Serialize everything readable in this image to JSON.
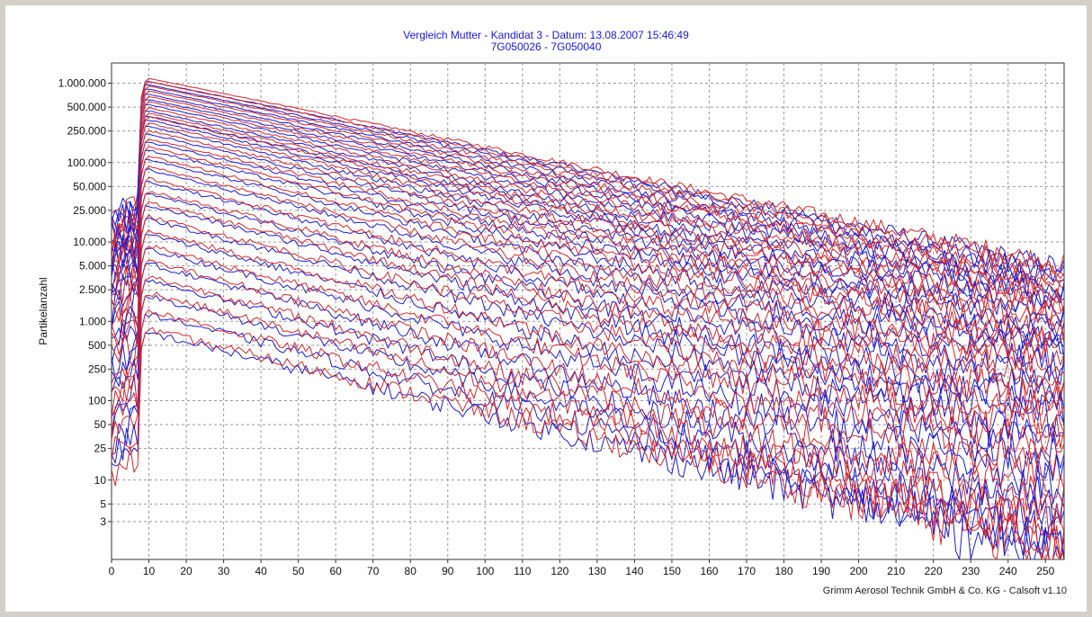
{
  "chart_data": {
    "type": "line",
    "title": "Vergleich Mutter - Kandidat 3 - Datum: 13.08.2007 15:46:49",
    "subtitle": "7G050026 - 7G050040",
    "xlabel": "",
    "ylabel": "Partikelanzahl",
    "footer": "Grimm Aerosol Technik GmbH & Co. KG - Calsoft v1.10",
    "y_scale": "log",
    "xlim": [
      0,
      255
    ],
    "ylim": [
      1,
      1800000
    ],
    "grid": true,
    "x_ticks": [
      0,
      10,
      20,
      30,
      40,
      50,
      60,
      70,
      80,
      90,
      100,
      110,
      120,
      130,
      140,
      150,
      160,
      170,
      180,
      190,
      200,
      210,
      220,
      230,
      240,
      250
    ],
    "y_ticks": [
      {
        "value": 1000000,
        "label": "1.000.000"
      },
      {
        "value": 500000,
        "label": "500.000"
      },
      {
        "value": 250000,
        "label": "250.000"
      },
      {
        "value": 100000,
        "label": "100.000"
      },
      {
        "value": 50000,
        "label": "50.000"
      },
      {
        "value": 25000,
        "label": "25.000"
      },
      {
        "value": 10000,
        "label": "10.000"
      },
      {
        "value": 5000,
        "label": "5.000"
      },
      {
        "value": 2500,
        "label": "2.500"
      },
      {
        "value": 1000,
        "label": "1.000"
      },
      {
        "value": 500,
        "label": "500"
      },
      {
        "value": 250,
        "label": "250"
      },
      {
        "value": 100,
        "label": "100"
      },
      {
        "value": 50,
        "label": "50"
      },
      {
        "value": 25,
        "label": "25"
      },
      {
        "value": 10,
        "label": "10"
      },
      {
        "value": 5,
        "label": "5"
      },
      {
        "value": 3,
        "label": "3"
      }
    ],
    "series_colors": [
      "#1c1ccf",
      "#d4282c"
    ],
    "peak_x": 10,
    "curves": [
      {
        "peak": 1100000,
        "end": 5000
      },
      {
        "peak": 1000000,
        "end": 4200
      },
      {
        "peak": 880000,
        "end": 3400
      },
      {
        "peak": 760000,
        "end": 2800
      },
      {
        "peak": 650000,
        "end": 2300
      },
      {
        "peak": 560000,
        "end": 1800
      },
      {
        "peak": 470000,
        "end": 1400
      },
      {
        "peak": 400000,
        "end": 1100
      },
      {
        "peak": 360000,
        "end": 850
      },
      {
        "peak": 300000,
        "end": 620
      },
      {
        "peak": 240000,
        "end": 480
      },
      {
        "peak": 190000,
        "end": 360
      },
      {
        "peak": 150000,
        "end": 260
      },
      {
        "peak": 115000,
        "end": 180
      },
      {
        "peak": 85000,
        "end": 120
      },
      {
        "peak": 60000,
        "end": 80
      },
      {
        "peak": 42000,
        "end": 55
      },
      {
        "peak": 30000,
        "end": 38
      },
      {
        "peak": 20000,
        "end": 25
      },
      {
        "peak": 13000,
        "end": 15
      },
      {
        "peak": 8500,
        "end": 9
      },
      {
        "peak": 5500,
        "end": 5
      },
      {
        "peak": 3500,
        "end": 3
      },
      {
        "peak": 2200,
        "end": 2
      },
      {
        "peak": 1300,
        "end": 1.5
      },
      {
        "peak": 750,
        "end": 1.2
      }
    ]
  }
}
